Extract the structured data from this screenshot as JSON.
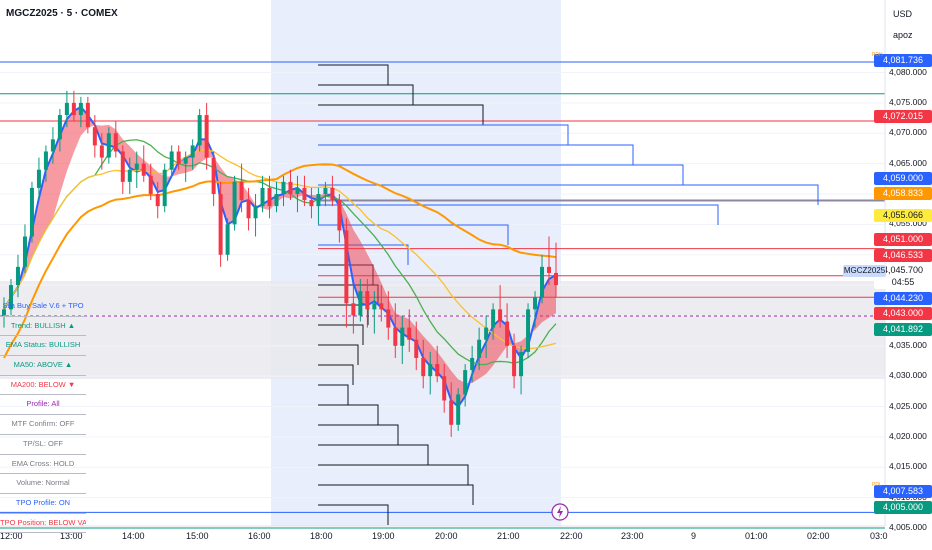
{
  "symbol": {
    "title": "MGCZ2025 · 5 · COMEX"
  },
  "price_scale": {
    "currency": "USD",
    "user": "apoz",
    "ticks": [
      "4,080.000",
      "4,075.000",
      "4,070.000",
      "4,065.000",
      "4,060.000",
      "4,055.000",
      "4,050.000",
      "4,045.000",
      "4,040.000",
      "4,035.000",
      "4,030.000",
      "4,025.000",
      "4,020.000",
      "4,015.000",
      "4,010.000",
      "4,005.000"
    ]
  },
  "time_scale": {
    "ticks": [
      "12:00",
      "13:00",
      "14:00",
      "15:00",
      "16:00",
      "18:00",
      "19:00",
      "20:00",
      "21:00",
      "22:00",
      "23:00",
      "9",
      "01:00",
      "02:00",
      "03:0"
    ]
  },
  "price_tags": [
    {
      "text": "4,081.736",
      "color": "#2962ff"
    },
    {
      "text": "4,072.015",
      "color": "#f23645"
    },
    {
      "text": "4,059.000",
      "color": "#2962ff"
    },
    {
      "text": "4,058.833",
      "color": "#ff9800"
    },
    {
      "text": "4,055.066",
      "color": "#ffeb3b",
      "text_color": "#131722"
    },
    {
      "text": "4,051.000",
      "color": "#f23645"
    },
    {
      "text": "4,046.533",
      "color": "#f23645"
    },
    {
      "text": "4,045.700",
      "color": "#ffffff",
      "text_color": "#131722"
    },
    {
      "text": "04:55",
      "color": "#ffffff",
      "text_color": "#131722"
    },
    {
      "text": "4,044.230",
      "color": "#2962ff"
    },
    {
      "text": "4,043.000",
      "color": "#f23645"
    },
    {
      "text": "4,041.892",
      "color": "#089981"
    },
    {
      "text": "4,007.583",
      "color": "#2962ff"
    },
    {
      "text": "4,005.000",
      "color": "#089981"
    }
  ],
  "symbol_tag": "MGCZ2025",
  "small_labels": [
    "PDH",
    "PDL"
  ],
  "table": {
    "rows": [
      {
        "text": "Sila Buy Sale V.6 + TPO",
        "color": "#2962ff"
      },
      {
        "text": "Trend: BULLISH ▲",
        "color": "#089981"
      },
      {
        "text": "EMA Status: BULLISH",
        "color": "#089981"
      },
      {
        "text": "MA50: ABOVE ▲",
        "color": "#089981"
      },
      {
        "text": "MA200: BELOW ▼",
        "color": "#f23645"
      },
      {
        "text": "Profile: All",
        "color": "#9c27b0"
      },
      {
        "text": "MTF Confirm: OFF",
        "color": "#787b86"
      },
      {
        "text": "TP/SL: OFF",
        "color": "#787b86"
      },
      {
        "text": "EMA Cross: HOLD",
        "color": "#787b86"
      },
      {
        "text": "Volume: Normal",
        "color": "#787b86"
      },
      {
        "text": "TPO Profile: ON",
        "color": "#2962ff"
      },
      {
        "text": "TPO Position: BELOW VAL",
        "color": "#f23645"
      }
    ]
  },
  "chart_data": {
    "type": "candlestick",
    "y_range": [
      4000,
      4085
    ],
    "levels": [
      {
        "price": 4081.736,
        "color": "#2962ff"
      },
      {
        "price": 4076.5,
        "color": "#089981"
      },
      {
        "price": 4072.015,
        "color": "#f23645"
      },
      {
        "price": 4059.0,
        "color": "#2962ff"
      },
      {
        "price": 4058.833,
        "color": "#ff9800"
      },
      {
        "price": 4051.0,
        "color": "#f23645"
      },
      {
        "price": 4046.533,
        "color": "#f23645"
      },
      {
        "price": 4043.0,
        "color": "#f23645"
      },
      {
        "price": 4007.583,
        "color": "#2962ff"
      },
      {
        "price": 4005.0,
        "color": "#089981"
      }
    ],
    "tpo_profile_widths": [
      70,
      95,
      165,
      250,
      315,
      365,
      500,
      400,
      190,
      90,
      55,
      60,
      50,
      45,
      40,
      35,
      30,
      60,
      80,
      110,
      150,
      155,
      70
    ],
    "candles": [
      [
        4040,
        4043,
        4038,
        4041
      ],
      [
        4041,
        4046,
        4040,
        4045
      ],
      [
        4045,
        4050,
        4043,
        4048
      ],
      [
        4048,
        4055,
        4047,
        4053
      ],
      [
        4053,
        4062,
        4052,
        4061
      ],
      [
        4061,
        4066,
        4059,
        4064
      ],
      [
        4064,
        4068,
        4062,
        4067
      ],
      [
        4067,
        4071,
        4065,
        4069
      ],
      [
        4069,
        4074,
        4067,
        4073
      ],
      [
        4073,
        4077,
        4071,
        4075
      ],
      [
        4075,
        4077,
        4072,
        4073
      ],
      [
        4073,
        4076,
        4071,
        4075
      ],
      [
        4075,
        4076,
        4070,
        4071
      ],
      [
        4071,
        4073,
        4066,
        4068
      ],
      [
        4068,
        4070,
        4064,
        4066
      ],
      [
        4066,
        4071,
        4065,
        4070
      ],
      [
        4070,
        4072,
        4066,
        4067
      ],
      [
        4067,
        4068,
        4060,
        4062
      ],
      [
        4062,
        4066,
        4060,
        4064
      ],
      [
        4064,
        4067,
        4061,
        4065
      ],
      [
        4065,
        4068,
        4062,
        4063
      ],
      [
        4063,
        4065,
        4059,
        4060
      ],
      [
        4060,
        4062,
        4056,
        4058
      ],
      [
        4058,
        4065,
        4057,
        4064
      ],
      [
        4064,
        4068,
        4063,
        4067
      ],
      [
        4067,
        4068,
        4064,
        4065
      ],
      [
        4065,
        4067,
        4062,
        4066
      ],
      [
        4066,
        4069,
        4064,
        4068
      ],
      [
        4068,
        4074,
        4067,
        4073
      ],
      [
        4073,
        4075,
        4064,
        4066
      ],
      [
        4066,
        4067,
        4058,
        4060
      ],
      [
        4060,
        4062,
        4048,
        4050
      ],
      [
        4050,
        4056,
        4049,
        4055
      ],
      [
        4055,
        4063,
        4054,
        4062
      ],
      [
        4062,
        4065,
        4057,
        4059
      ],
      [
        4059,
        4061,
        4054,
        4056
      ],
      [
        4056,
        4060,
        4053,
        4058
      ],
      [
        4058,
        4063,
        4057,
        4061
      ],
      [
        4061,
        4063,
        4056,
        4058
      ],
      [
        4058,
        4062,
        4057,
        4060
      ],
      [
        4060,
        4063,
        4058,
        4062
      ],
      [
        4062,
        4064,
        4059,
        4060
      ],
      [
        4060,
        4063,
        4057,
        4061
      ],
      [
        4061,
        4063,
        4058,
        4059
      ],
      [
        4059,
        4061,
        4056,
        4058
      ],
      [
        4058,
        4061,
        4055,
        4060
      ],
      [
        4060,
        4062,
        4058,
        4061
      ],
      [
        4061,
        4063,
        4058,
        4059
      ],
      [
        4059,
        4060,
        4052,
        4054
      ],
      [
        4054,
        4056,
        4038,
        4042
      ],
      [
        4042,
        4045,
        4037,
        4040
      ],
      [
        4040,
        4046,
        4039,
        4044
      ],
      [
        4044,
        4046,
        4038,
        4041
      ],
      [
        4041,
        4044,
        4037,
        4042
      ],
      [
        4042,
        4045,
        4039,
        4041
      ],
      [
        4041,
        4044,
        4036,
        4038
      ],
      [
        4038,
        4042,
        4033,
        4035
      ],
      [
        4035,
        4040,
        4032,
        4038
      ],
      [
        4038,
        4041,
        4034,
        4036
      ],
      [
        4036,
        4039,
        4031,
        4033
      ],
      [
        4033,
        4036,
        4028,
        4030
      ],
      [
        4030,
        4034,
        4027,
        4032
      ],
      [
        4032,
        4035,
        4029,
        4030
      ],
      [
        4030,
        4032,
        4024,
        4026
      ],
      [
        4026,
        4029,
        4020,
        4022
      ],
      [
        4022,
        4028,
        4021,
        4027
      ],
      [
        4027,
        4032,
        4025,
        4031
      ],
      [
        4031,
        4035,
        4029,
        4033
      ],
      [
        4033,
        4038,
        4031,
        4036
      ],
      [
        4036,
        4040,
        4033,
        4038
      ],
      [
        4038,
        4042,
        4036,
        4041
      ],
      [
        4041,
        4045,
        4038,
        4039
      ],
      [
        4039,
        4042,
        4033,
        4035
      ],
      [
        4035,
        4037,
        4028,
        4030
      ],
      [
        4030,
        4035,
        4027,
        4034
      ],
      [
        4034,
        4042,
        4033,
        4041
      ],
      [
        4041,
        4044,
        4038,
        4043
      ],
      [
        4043,
        4050,
        4042,
        4048
      ],
      [
        4048,
        4053,
        4045,
        4047
      ],
      [
        4047,
        4052,
        4043,
        4045
      ]
    ]
  }
}
